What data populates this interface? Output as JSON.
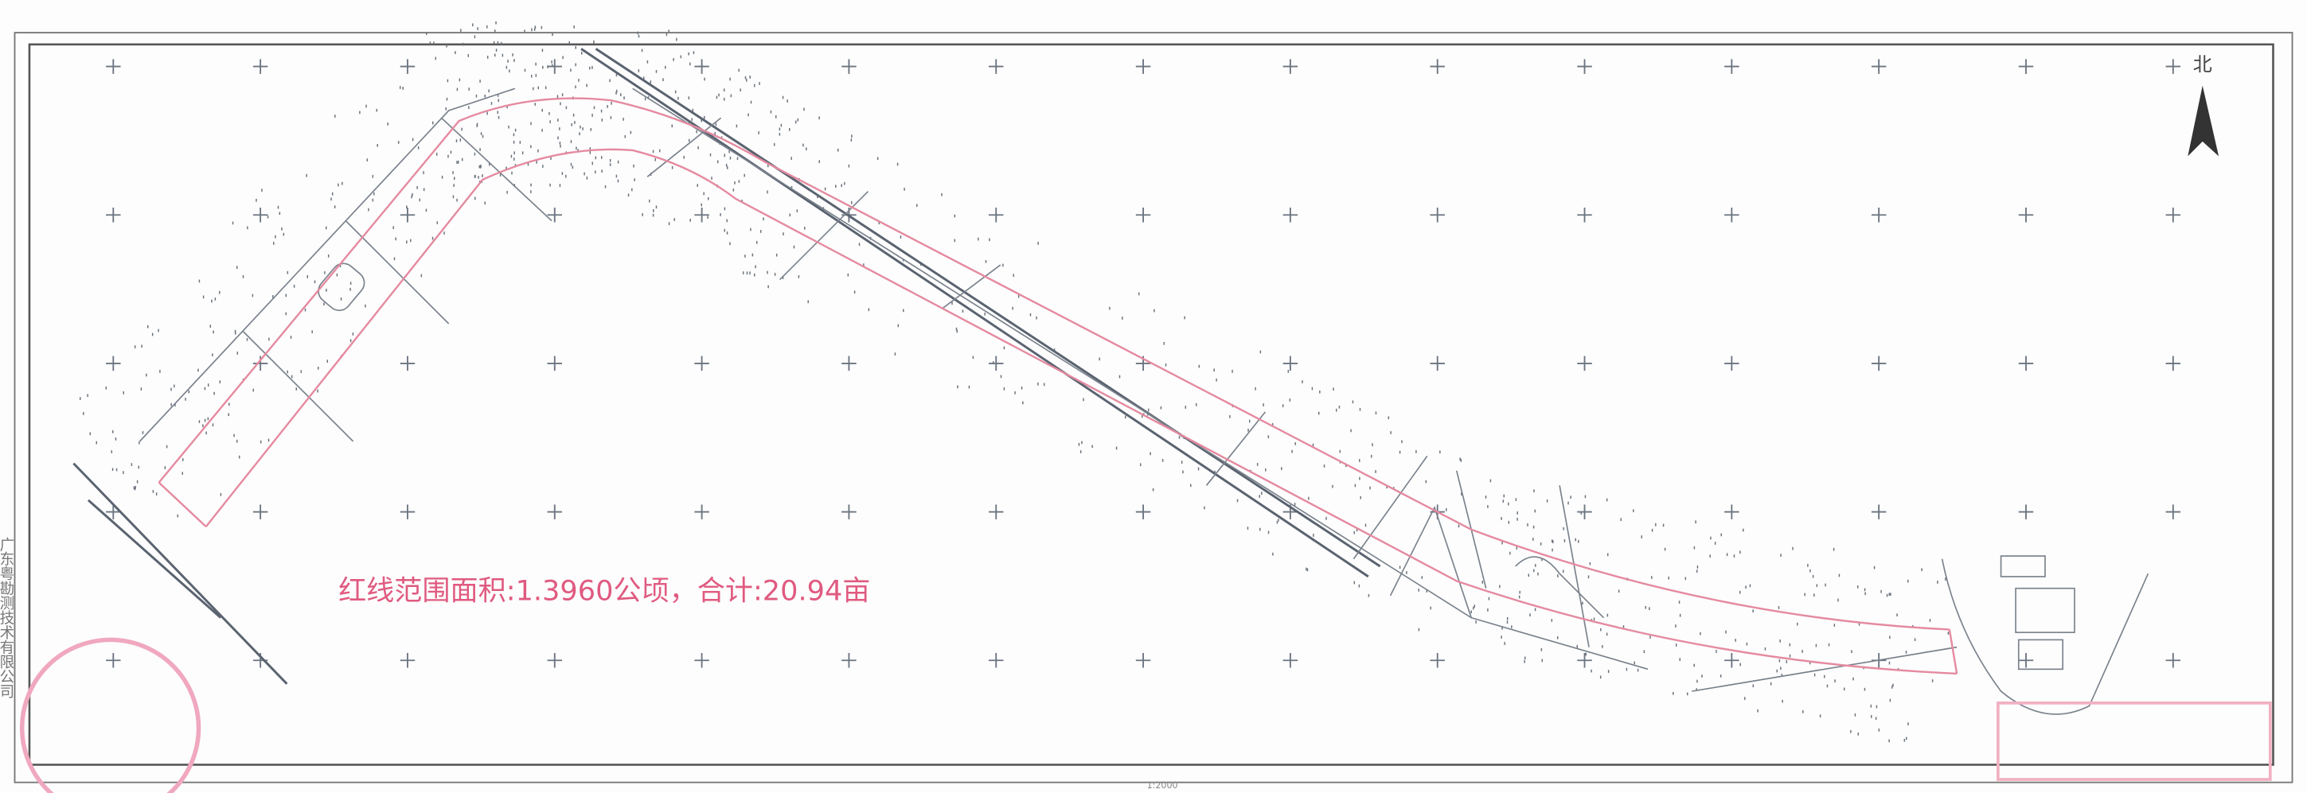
{
  "map": {
    "annotation": "红线范围面积:1.3960公顷，合计:20.94亩",
    "north": "北",
    "scale": "1:2000",
    "company": "广东粤勘测技术有限公司"
  }
}
